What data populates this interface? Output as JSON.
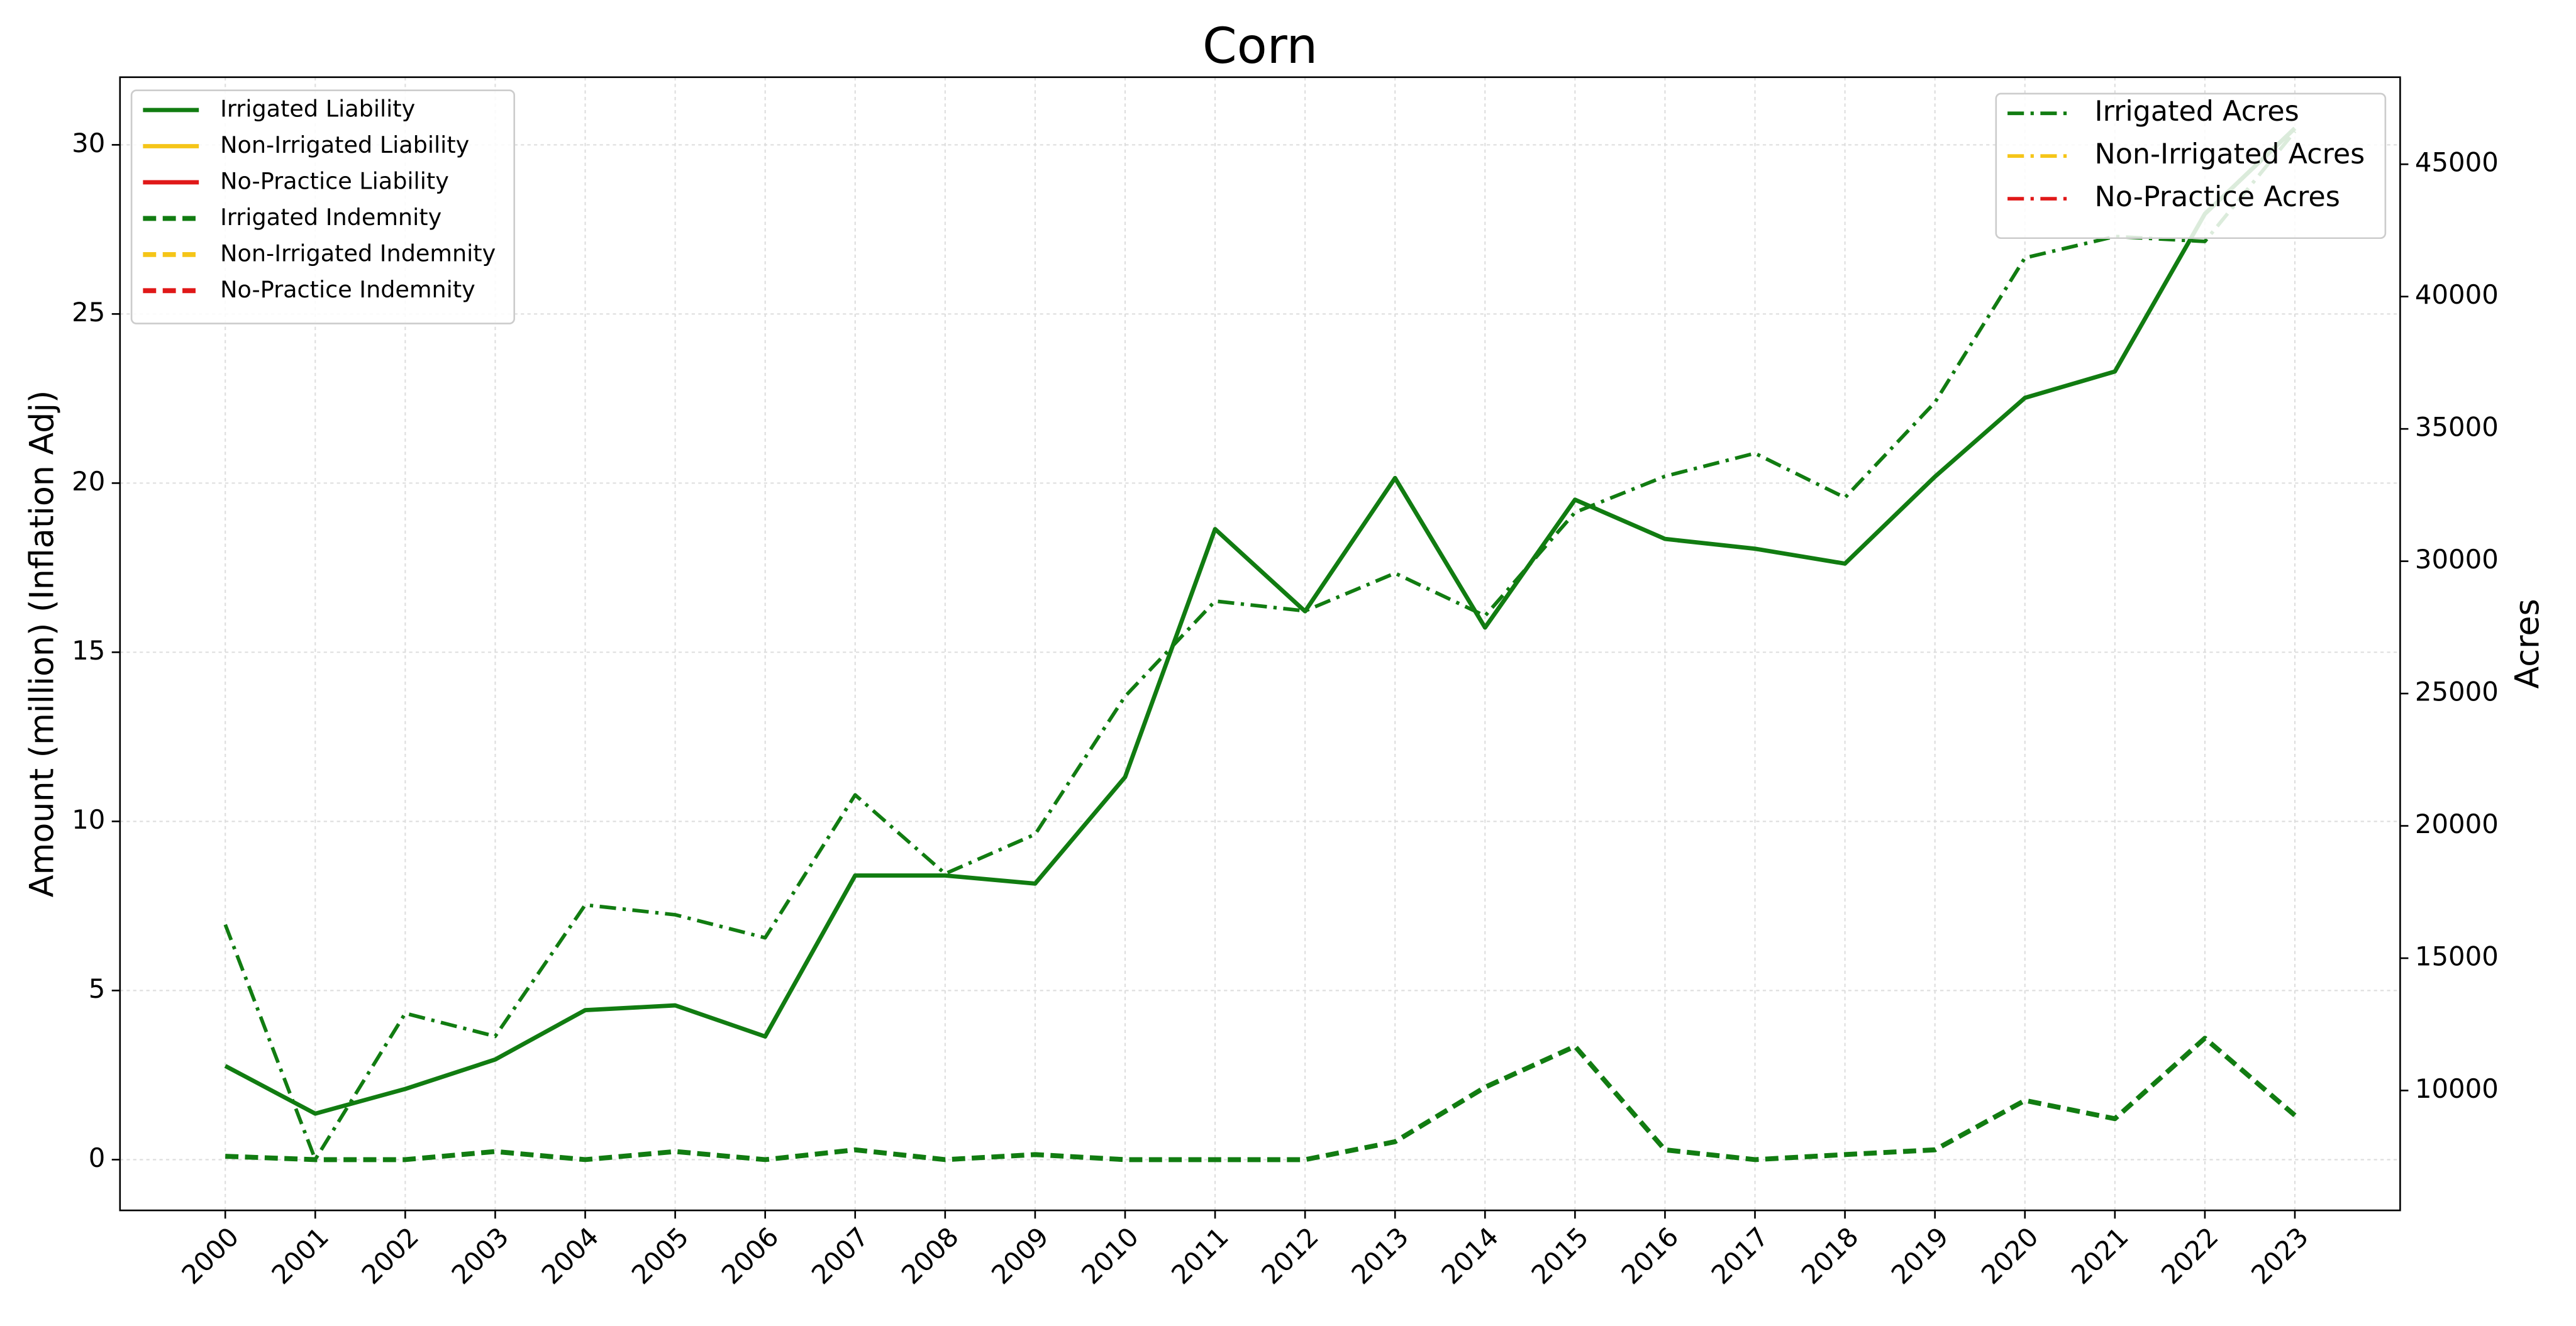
{
  "chart_data": {
    "type": "line",
    "title": "Corn",
    "ylabel": "Amount (million) (Inflation Adj)",
    "y2label": "Acres",
    "x": [
      2000,
      2001,
      2002,
      2003,
      2004,
      2005,
      2006,
      2007,
      2008,
      2009,
      2010,
      2011,
      2012,
      2013,
      2014,
      2015,
      2016,
      2017,
      2018,
      2019,
      2020,
      2021,
      2022,
      2023
    ],
    "xlim": [
      1998.83,
      2024.17
    ],
    "xticks": [
      2000,
      2001,
      2002,
      2003,
      2004,
      2005,
      2006,
      2007,
      2008,
      2009,
      2010,
      2011,
      2012,
      2013,
      2014,
      2015,
      2016,
      2017,
      2018,
      2019,
      2020,
      2021,
      2022,
      2023
    ],
    "ylim": [
      -1.5,
      32
    ],
    "yticks": [
      0,
      5,
      10,
      15,
      20,
      25,
      30
    ],
    "y2lim": [
      5470,
      48290
    ],
    "y2ticks": [
      10000,
      15000,
      20000,
      25000,
      30000,
      35000,
      40000,
      45000
    ],
    "grid": true,
    "legend": "upper left",
    "legend2": "upper right",
    "series": [
      {
        "name": "Irrigated Liability",
        "color": "#117c11",
        "dash": "solid",
        "values": [
          2.77,
          1.36,
          2.09,
          2.96,
          4.42,
          4.56,
          3.64,
          8.4,
          8.4,
          8.16,
          11.31,
          18.64,
          16.21,
          20.15,
          15.73,
          19.51,
          18.35,
          18.06,
          17.62,
          20.19,
          22.52,
          23.3,
          27.96,
          30.49
        ]
      },
      {
        "name": "Non-Irrigated Liability",
        "color": "#f5c518",
        "dash": "solid",
        "values": [
          null,
          null,
          null,
          null,
          null,
          null,
          null,
          null,
          null,
          null,
          null,
          null,
          null,
          null,
          null,
          null,
          null,
          null,
          null,
          null,
          null,
          null,
          null,
          null
        ]
      },
      {
        "name": "No-Practice Liability",
        "color": "#e01818",
        "dash": "solid",
        "values": [
          null,
          null,
          null,
          null,
          null,
          null,
          null,
          null,
          null,
          null,
          null,
          null,
          null,
          null,
          null,
          null,
          null,
          null,
          null,
          null,
          null,
          null,
          null,
          null
        ]
      },
      {
        "name": "Irrigated Indemnity",
        "color": "#117c11",
        "dash": "dashed",
        "values": [
          0.1,
          0,
          0,
          0.24,
          0,
          0.24,
          0,
          0.29,
          0,
          0.15,
          0,
          0,
          0,
          0.53,
          2.14,
          3.35,
          0.29,
          0,
          0.15,
          0.29,
          1.75,
          1.21,
          3.59,
          1.31
        ]
      },
      {
        "name": "Non-Irrigated Indemnity",
        "color": "#f5c518",
        "dash": "dashed",
        "values": [
          null,
          null,
          null,
          null,
          null,
          null,
          null,
          null,
          null,
          null,
          null,
          null,
          null,
          null,
          null,
          null,
          null,
          null,
          null,
          null,
          null,
          null,
          null,
          null
        ]
      },
      {
        "name": "No-Practice Indemnity",
        "color": "#e01818",
        "dash": "dashed",
        "values": [
          null,
          null,
          null,
          null,
          null,
          null,
          null,
          null,
          null,
          null,
          null,
          null,
          null,
          null,
          null,
          null,
          null,
          null,
          null,
          null,
          null,
          null,
          null,
          null
        ]
      },
      {
        "name": "Irrigated Acres",
        "color": "#117c11",
        "dash": "dashdot",
        "axis": "y2",
        "values": [
          16268,
          7394,
          12917,
          12048,
          17013,
          16640,
          15771,
          21170,
          18191,
          19681,
          24894,
          28494,
          28121,
          29548,
          27935,
          31845,
          33210,
          34079,
          32403,
          36002,
          41463,
          42270,
          42084,
          46242
        ]
      },
      {
        "name": "Non-Irrigated Acres",
        "color": "#f5c518",
        "dash": "dashdot",
        "axis": "y2",
        "values": [
          null,
          null,
          null,
          null,
          null,
          null,
          null,
          null,
          null,
          null,
          null,
          null,
          null,
          null,
          null,
          null,
          null,
          null,
          null,
          null,
          null,
          null,
          null,
          null
        ]
      },
      {
        "name": "No-Practice Acres",
        "color": "#e01818",
        "dash": "dashdot",
        "axis": "y2",
        "values": [
          null,
          null,
          null,
          null,
          null,
          null,
          null,
          null,
          null,
          null,
          null,
          null,
          null,
          null,
          null,
          null,
          null,
          null,
          null,
          null,
          null,
          null,
          null,
          null
        ]
      }
    ]
  }
}
